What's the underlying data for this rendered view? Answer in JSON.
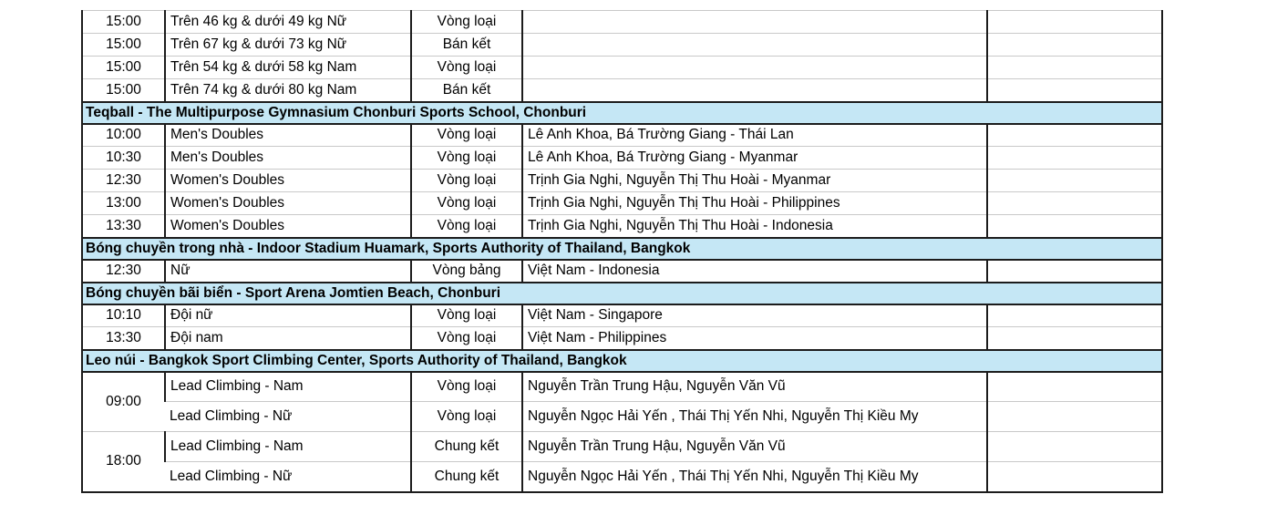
{
  "colors": {
    "section_header_bg": "#c5e7f5",
    "grid_dark": "#1c1c1c",
    "grid_light": "#c9c9c9",
    "text": "#000000",
    "background": "#ffffff"
  },
  "table": {
    "columns": [
      "time",
      "event",
      "round",
      "participants",
      "result"
    ],
    "sections": [
      {
        "header": null,
        "rows": [
          {
            "time": "15:00",
            "event": "Trên 46 kg & dưới 49 kg Nữ",
            "round": "Vòng loại",
            "participants": "",
            "result": ""
          },
          {
            "time": "15:00",
            "event": "Trên 67 kg & dưới 73 kg Nữ",
            "round": "Bán kết",
            "participants": "",
            "result": ""
          },
          {
            "time": "15:00",
            "event": "Trên 54 kg & dưới 58 kg Nam",
            "round": "Vòng loại",
            "participants": "",
            "result": ""
          },
          {
            "time": "15:00",
            "event": "Trên 74 kg & dưới 80 kg Nam",
            "round": "Bán kết",
            "participants": "",
            "result": ""
          }
        ]
      },
      {
        "header": "Teqball - The Multipurpose Gymnasium Chonburi Sports School, Chonburi",
        "rows": [
          {
            "time": "10:00",
            "event": "Men's Doubles",
            "round": "Vòng loại",
            "participants": "Lê Anh Khoa, Bá Trường Giang - Thái Lan",
            "result": ""
          },
          {
            "time": "10:30",
            "event": "Men's Doubles",
            "round": "Vòng loại",
            "participants": "Lê Anh Khoa, Bá Trường Giang - Myanmar",
            "result": ""
          },
          {
            "time": "12:30",
            "event": "Women's Doubles",
            "round": "Vòng loại",
            "participants": "Trịnh Gia Nghi, Nguyễn Thị Thu Hoài - Myanmar",
            "result": ""
          },
          {
            "time": "13:00",
            "event": "Women's Doubles",
            "round": "Vòng loại",
            "participants": "Trịnh Gia Nghi, Nguyễn Thị Thu Hoài - Philippines",
            "result": ""
          },
          {
            "time": "13:30",
            "event": "Women's Doubles",
            "round": "Vòng loại",
            "participants": "Trịnh Gia Nghi, Nguyễn Thị Thu Hoài - Indonesia",
            "result": ""
          }
        ]
      },
      {
        "header": "Bóng chuyền trong nhà - Indoor Stadium Huamark, Sports Authority of Thailand, Bangkok",
        "rows": [
          {
            "time": "12:30",
            "event": "Nữ",
            "round": "Vòng bảng",
            "participants": "Việt Nam - Indonesia",
            "result": ""
          }
        ]
      },
      {
        "header": "Bóng chuyền bãi biển - Sport Arena Jomtien Beach, Chonburi",
        "rows": [
          {
            "time": "10:10",
            "event": "Đội nữ",
            "round": "Vòng loại",
            "participants": "Việt Nam - Singapore",
            "result": ""
          },
          {
            "time": "13:30",
            "event": "Đội nam",
            "round": "Vòng loại",
            "participants": "Việt Nam - Philippines",
            "result": ""
          }
        ]
      },
      {
        "header": "Leo núi - Bangkok Sport Climbing Center, Sports Authority of Thailand, Bangkok",
        "rows": [
          {
            "time": "09:00",
            "time_rowspan": 2,
            "tall": true,
            "event": "Lead Climbing - Nam",
            "round": "Vòng loại",
            "participants": "Nguyễn Trần Trung Hậu, Nguyễn Văn Vũ",
            "result": ""
          },
          {
            "time": null,
            "tall": true,
            "event": "Lead Climbing - Nữ",
            "round": "Vòng loại",
            "participants": "Nguyễn Ngọc Hải Yến , Thái Thị Yến Nhi, Nguyễn Thị Kiều My",
            "result": ""
          },
          {
            "time": "18:00",
            "time_rowspan": 2,
            "tall": true,
            "event": "Lead Climbing - Nam",
            "round": "Chung kết",
            "participants": "Nguyễn Trần Trung Hậu, Nguyễn Văn Vũ",
            "result": ""
          },
          {
            "time": null,
            "tall": true,
            "event": "Lead Climbing - Nữ",
            "round": "Chung kết",
            "participants": "Nguyễn Ngọc Hải Yến , Thái Thị Yến Nhi, Nguyễn Thị Kiều My",
            "result": ""
          }
        ]
      }
    ]
  }
}
